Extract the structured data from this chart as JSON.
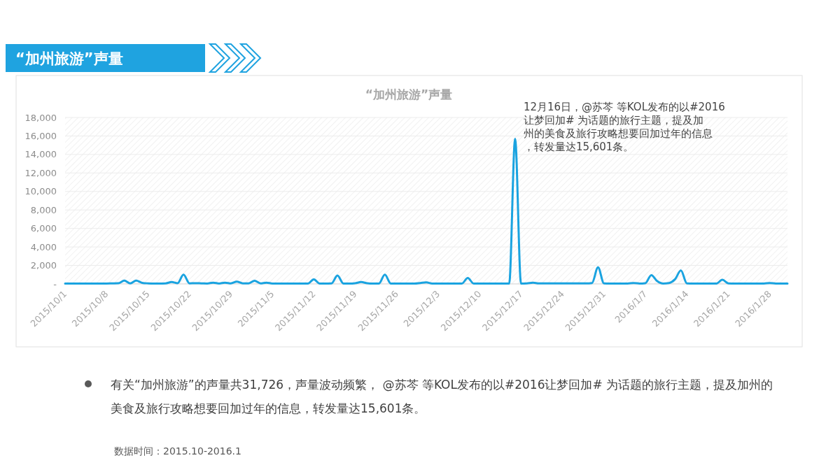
{
  "chart_data": {
    "type": "line",
    "title": "“加州旅游”声量",
    "subtitle": "“加州旅游”声量",
    "x": [
      "2015-10-01",
      "2015-10-02",
      "2015-10-03",
      "2015-10-04",
      "2015-10-05",
      "2015-10-06",
      "2015-10-07",
      "2015-10-08",
      "2015-10-09",
      "2015-10-10",
      "2015-10-11",
      "2015-10-12",
      "2015-10-13",
      "2015-10-14",
      "2015-10-15",
      "2015-10-16",
      "2015-10-17",
      "2015-10-18",
      "2015-10-19",
      "2015-10-20",
      "2015-10-21",
      "2015-10-22",
      "2015-10-23",
      "2015-10-24",
      "2015-10-25",
      "2015-10-26",
      "2015-10-27",
      "2015-10-28",
      "2015-10-29",
      "2015-10-30",
      "2015-10-31",
      "2015-11-01",
      "2015-11-02",
      "2015-11-03",
      "2015-11-04",
      "2015-11-05",
      "2015-11-06",
      "2015-11-07",
      "2015-11-08",
      "2015-11-09",
      "2015-11-10",
      "2015-11-11",
      "2015-11-12",
      "2015-11-13",
      "2015-11-14",
      "2015-11-15",
      "2015-11-16",
      "2015-11-17",
      "2015-11-18",
      "2015-11-19",
      "2015-11-20",
      "2015-11-21",
      "2015-11-22",
      "2015-11-23",
      "2015-11-24",
      "2015-11-25",
      "2015-11-26",
      "2015-11-27",
      "2015-11-28",
      "2015-11-29",
      "2015-11-30",
      "2015-12-01",
      "2015-12-02",
      "2015-12-03",
      "2015-12-04",
      "2015-12-05",
      "2015-12-06",
      "2015-12-07",
      "2015-12-08",
      "2015-12-09",
      "2015-12-10",
      "2015-12-11",
      "2015-12-12",
      "2015-12-13",
      "2015-12-14",
      "2015-12-15",
      "2015-12-16",
      "2015-12-17",
      "2015-12-18",
      "2015-12-19",
      "2015-12-20",
      "2015-12-21",
      "2015-12-22",
      "2015-12-23",
      "2015-12-24",
      "2015-12-25",
      "2015-12-26",
      "2015-12-27",
      "2015-12-28",
      "2015-12-29",
      "2015-12-30",
      "2015-12-31",
      "2016-01-01",
      "2016-01-02",
      "2016-01-03",
      "2016-01-04",
      "2016-01-05",
      "2016-01-06",
      "2016-01-07",
      "2016-01-08",
      "2016-01-09",
      "2016-01-10",
      "2016-01-11",
      "2016-01-12",
      "2016-01-13",
      "2016-01-14",
      "2016-01-15",
      "2016-01-16",
      "2016-01-17",
      "2016-01-18",
      "2016-01-19",
      "2016-01-20",
      "2016-01-21",
      "2016-01-22",
      "2016-01-23",
      "2016-01-24",
      "2016-01-25",
      "2016-01-26",
      "2016-01-27",
      "2016-01-28",
      "2016-01-29",
      "2016-01-30",
      "2016-01-31"
    ],
    "series": [
      {
        "color": "#1aa3e0",
        "values": [
          40,
          40,
          40,
          40,
          40,
          40,
          40,
          40,
          60,
          80,
          350,
          60,
          350,
          120,
          60,
          40,
          40,
          60,
          200,
          80,
          1000,
          60,
          80,
          60,
          40,
          140,
          40,
          140,
          60,
          250,
          60,
          60,
          340,
          60,
          140,
          40,
          40,
          40,
          40,
          40,
          40,
          40,
          490,
          40,
          40,
          60,
          900,
          40,
          40,
          80,
          200,
          80,
          40,
          40,
          1000,
          40,
          40,
          40,
          40,
          40,
          100,
          170,
          40,
          40,
          40,
          40,
          40,
          40,
          640,
          40,
          40,
          40,
          40,
          40,
          40,
          40,
          15700,
          40,
          60,
          140,
          50,
          50,
          50,
          50,
          50,
          50,
          50,
          60,
          50,
          100,
          1800,
          60,
          40,
          40,
          40,
          40,
          100,
          40,
          80,
          950,
          300,
          40,
          100,
          500,
          1450,
          60,
          40,
          40,
          40,
          40,
          40,
          450,
          60,
          40,
          40,
          40,
          40,
          40,
          40,
          100,
          40,
          40,
          40
        ]
      }
    ],
    "xlim": [
      "2015-10-01",
      "2016-01-31"
    ],
    "xticks": [
      {
        "value": "2015-10-01",
        "label": "2015/10/1"
      },
      {
        "value": "2015-10-08",
        "label": "2015/10/8"
      },
      {
        "value": "2015-10-15",
        "label": "2015/10/15"
      },
      {
        "value": "2015-10-22",
        "label": "2015/10/22"
      },
      {
        "value": "2015-10-29",
        "label": "2015/10/29"
      },
      {
        "value": "2015-11-05",
        "label": "2015/11/5"
      },
      {
        "value": "2015-11-12",
        "label": "2015/11/12"
      },
      {
        "value": "2015-11-19",
        "label": "2015/11/19"
      },
      {
        "value": "2015-11-26",
        "label": "2015/11/26"
      },
      {
        "value": "2015-12-03",
        "label": "2015/12/3"
      },
      {
        "value": "2015-12-10",
        "label": "2015/12/10"
      },
      {
        "value": "2015-12-17",
        "label": "2015/12/17"
      },
      {
        "value": "2015-12-24",
        "label": "2015/12/24"
      },
      {
        "value": "2015-12-31",
        "label": "2015/12/31"
      },
      {
        "value": "2016-01-07",
        "label": "2016/1/7"
      },
      {
        "value": "2016-01-14",
        "label": "2016/1/14"
      },
      {
        "value": "2016-01-21",
        "label": "2016/1/21"
      },
      {
        "value": "2016-01-28",
        "label": "2016/1/28"
      }
    ],
    "ylim": [
      0,
      18000
    ],
    "yticks": [
      {
        "value": 0,
        "label": "-"
      },
      {
        "value": 2000,
        "label": "2,000"
      },
      {
        "value": 4000,
        "label": "4,000"
      },
      {
        "value": 6000,
        "label": "6,000"
      },
      {
        "value": 8000,
        "label": "8,000"
      },
      {
        "value": 10000,
        "label": "10,000"
      },
      {
        "value": 12000,
        "label": "12,000"
      },
      {
        "value": 14000,
        "label": "14,000"
      },
      {
        "value": 16000,
        "label": "16,000"
      },
      {
        "value": 18000,
        "label": "18,000"
      }
    ],
    "grid": "y",
    "marker": "none",
    "line_style": "solid",
    "annotations": [
      {
        "text": "12月16日，@苏芩 等KOL发布的以#2016让梦回加# 为话题的旅行主题，提及加州的美食及旅行攻略想要回加过年的信息，转发量达15,601条。",
        "x": "2015-12-16",
        "y": 15700
      },
      "有关“加州旅游”的声量共31,726，声量波动频繁， @苏芩 等KOL发布的以#2016让梦回加# 为话题的旅行主题，提及加州的美食及旅行攻略想要回加过年的信息，转发量达15,601条。",
      "数据时间：2015.10-2016.1"
    ]
  }
}
